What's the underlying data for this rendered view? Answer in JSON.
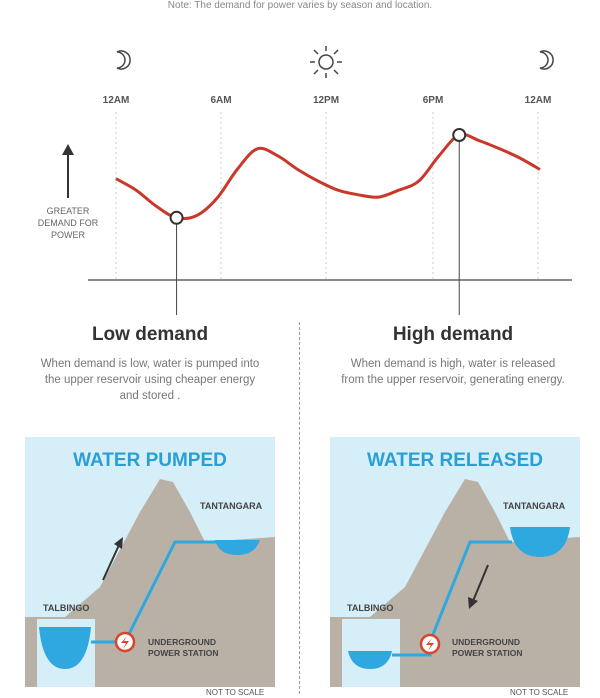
{
  "note": "Note: The demand for power varies by season and location.",
  "chart_data": {
    "type": "line",
    "x_ticks": [
      "12AM",
      "6AM",
      "12PM",
      "6PM",
      "12AM"
    ],
    "y_label": "GREATER DEMAND FOR POWER",
    "series": [
      {
        "values": [
          0.62,
          0.52,
          0.38,
          0.28,
          0.3,
          0.45,
          0.7,
          0.88,
          0.82,
          0.7,
          0.6,
          0.52,
          0.48,
          0.46,
          0.52,
          0.6,
          0.82,
          1.0,
          0.95,
          0.88,
          0.8,
          0.7
        ]
      }
    ],
    "markers": [
      {
        "name": "low-demand-point",
        "index": 3
      },
      {
        "name": "high-demand-point",
        "index": 17
      }
    ],
    "icons": [
      "moon-icon",
      "sun-icon",
      "moon-icon"
    ],
    "colors": {
      "line": "#c9382a"
    }
  },
  "left": {
    "heading": "Low demand",
    "description": "When demand is low, water is pumped into the upper reservoir using cheaper energy and stored .",
    "panel_title": "WATER PUMPED",
    "upper": "TANTANGARA",
    "lower": "TALBINGO",
    "station_line1": "UNDERGROUND",
    "station_line2": "POWER STATION",
    "scale": "NOT TO SCALE"
  },
  "right": {
    "heading": "High demand",
    "description": "When demand is high, water is released from the upper reservoir, generating energy.",
    "panel_title": "WATER RELEASED",
    "upper": "TANTANGARA",
    "lower": "TALBINGO",
    "station_line1": "UNDERGROUND",
    "station_line2": "POWER STATION",
    "scale": "NOT TO SCALE"
  },
  "colors": {
    "sky": "#d6eef8",
    "mountain": "#b9b1a6",
    "water": "#2ea8de",
    "pipe": "#2ea8de",
    "station": "#d9452b"
  }
}
